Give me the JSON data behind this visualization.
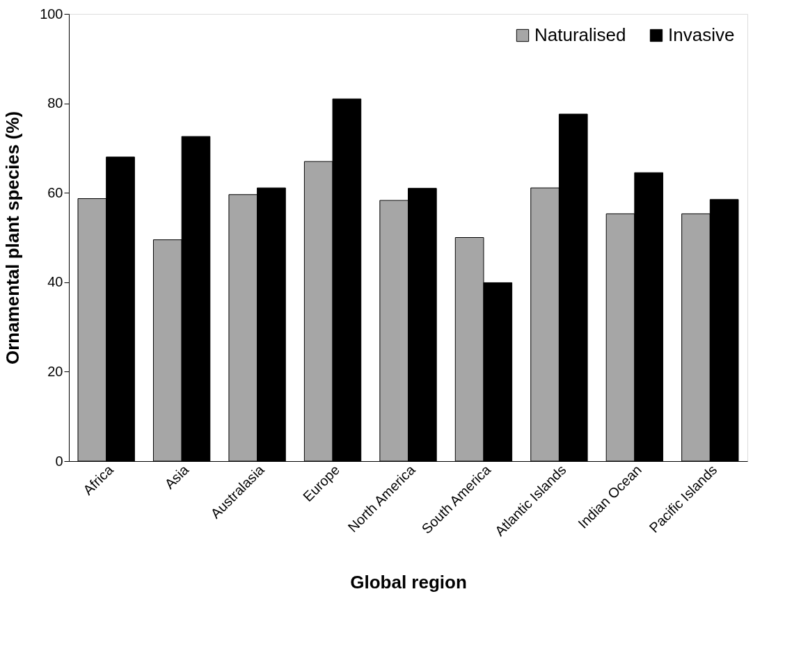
{
  "chart_data": {
    "type": "bar",
    "xlabel": "Global region",
    "ylabel": "Ornamental plant species (%)",
    "categories": [
      "Africa",
      "Asia",
      "Australasia",
      "Europe",
      "North America",
      "South America",
      "Atlantic Islands",
      "Indian Ocean",
      "Pacific Islands"
    ],
    "series": [
      {
        "name": "Naturalised",
        "color": "#a6a6a6",
        "values": [
          58.7,
          49.5,
          59.6,
          67.0,
          58.3,
          50.0,
          61.1,
          55.3,
          55.3
        ]
      },
      {
        "name": "Invasive",
        "color": "#000000",
        "values": [
          68.0,
          72.6,
          61.1,
          81.0,
          61.0,
          39.9,
          77.6,
          64.5,
          58.5
        ]
      }
    ],
    "ylim": [
      0,
      100
    ],
    "yticks": [
      0,
      20,
      40,
      60,
      80,
      100
    ],
    "grid": false,
    "legend": "top right"
  }
}
